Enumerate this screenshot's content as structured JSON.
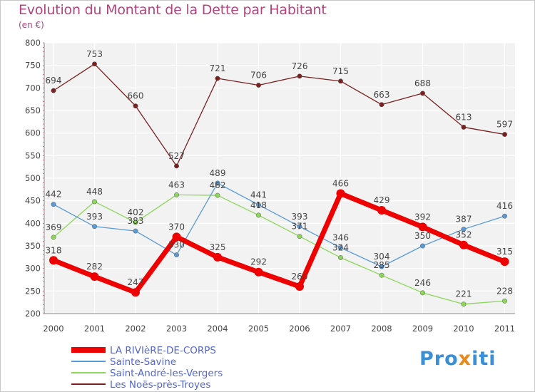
{
  "header": {
    "title": "Evolution du Montant de la Dette par Habitant",
    "subtitle": "(en €)"
  },
  "logo": {
    "parts": [
      "Pro",
      "x",
      "iti"
    ],
    "colors": [
      "#3a8fd6",
      "#e8891a",
      "#3a8fd6"
    ]
  },
  "chart_data": {
    "type": "line",
    "title": "Evolution du Montant de la Dette par Habitant",
    "ylabel": "(en €)",
    "xlabel": "",
    "categories": [
      "2000",
      "2001",
      "2002",
      "2003",
      "2004",
      "2005",
      "2006",
      "2007",
      "2008",
      "2009",
      "2010",
      "2011"
    ],
    "ylim": [
      200,
      800
    ],
    "yticks": [
      200,
      250,
      300,
      350,
      400,
      450,
      500,
      550,
      600,
      650,
      700,
      750,
      800
    ],
    "grid": true,
    "legend_position": "bottom-left",
    "series": [
      {
        "name": "LA RIVIèRE-DE-CORPS",
        "color": "#ef0000",
        "values": [
          318,
          282,
          247,
          370,
          325,
          292,
          260,
          466,
          429,
          392,
          352,
          315
        ],
        "labels": [
          "318",
          "282",
          "247",
          "370",
          "325",
          "292",
          "260",
          "466",
          "429",
          "392",
          "352",
          "315"
        ]
      },
      {
        "name": "Sainte-Savine",
        "color": "#5a9bd5",
        "values": [
          442,
          393,
          383,
          330,
          489,
          441,
          393,
          346,
          304,
          350,
          387,
          416
        ],
        "labels": [
          "442",
          "393",
          "383",
          "330",
          "489",
          "441",
          "393",
          "346",
          "304",
          "350",
          "387",
          "416"
        ]
      },
      {
        "name": "Saint-André-les-Vergers",
        "color": "#8cd65a",
        "values": [
          369,
          448,
          402,
          463,
          462,
          418,
          371,
          324,
          285,
          246,
          221,
          228
        ],
        "labels": [
          "369",
          "448",
          "402",
          "463",
          "462",
          "418",
          "371",
          "324",
          "285",
          "246",
          "221",
          "228"
        ]
      },
      {
        "name": "Les Noës-près-Troyes",
        "color": "#7a2020",
        "values": [
          694,
          753,
          660,
          527,
          721,
          706,
          726,
          715,
          663,
          688,
          613,
          597
        ],
        "labels": [
          "694",
          "753",
          "660",
          "527",
          "721",
          "706",
          "726",
          "715",
          "663",
          "688",
          "613",
          "597"
        ]
      }
    ]
  }
}
